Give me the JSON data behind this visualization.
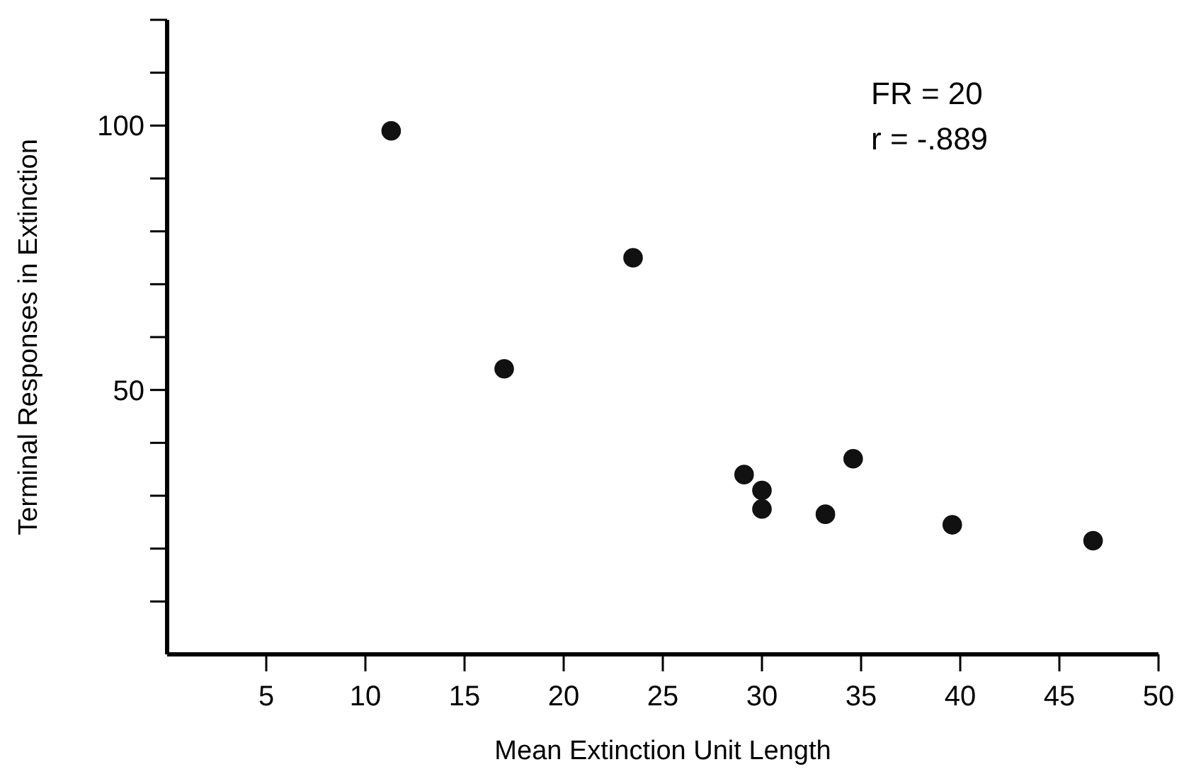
{
  "chart_data": {
    "type": "scatter",
    "xlabel": "Mean Extinction Unit Length",
    "ylabel": "Terminal Responses in Extinction",
    "x": [
      11.3,
      23.5,
      17,
      29.1,
      30,
      30,
      33.2,
      34.6,
      39.6,
      46.7
    ],
    "values": [
      99,
      75,
      54,
      34,
      31,
      27.5,
      26.5,
      37,
      24.5,
      21.5
    ],
    "color": "#111111",
    "marker": "circle",
    "xlim": [
      0,
      50
    ],
    "xticks": [
      5,
      10,
      15,
      20,
      25,
      30,
      35,
      40,
      45,
      50
    ],
    "ylim": [
      0,
      120
    ],
    "yticks": [
      {
        "value": 10,
        "label": null
      },
      {
        "value": 20,
        "label": null
      },
      {
        "value": 30,
        "label": null
      },
      {
        "value": 40,
        "label": null
      },
      50,
      {
        "value": 60,
        "label": null
      },
      {
        "value": 70,
        "label": null
      },
      {
        "value": 80,
        "label": null
      },
      {
        "value": 90,
        "label": null
      },
      100,
      {
        "value": 110,
        "label": null
      },
      {
        "value": 120,
        "label": null
      }
    ],
    "annotations": [
      "FR = 20",
      "r = -.889"
    ]
  }
}
